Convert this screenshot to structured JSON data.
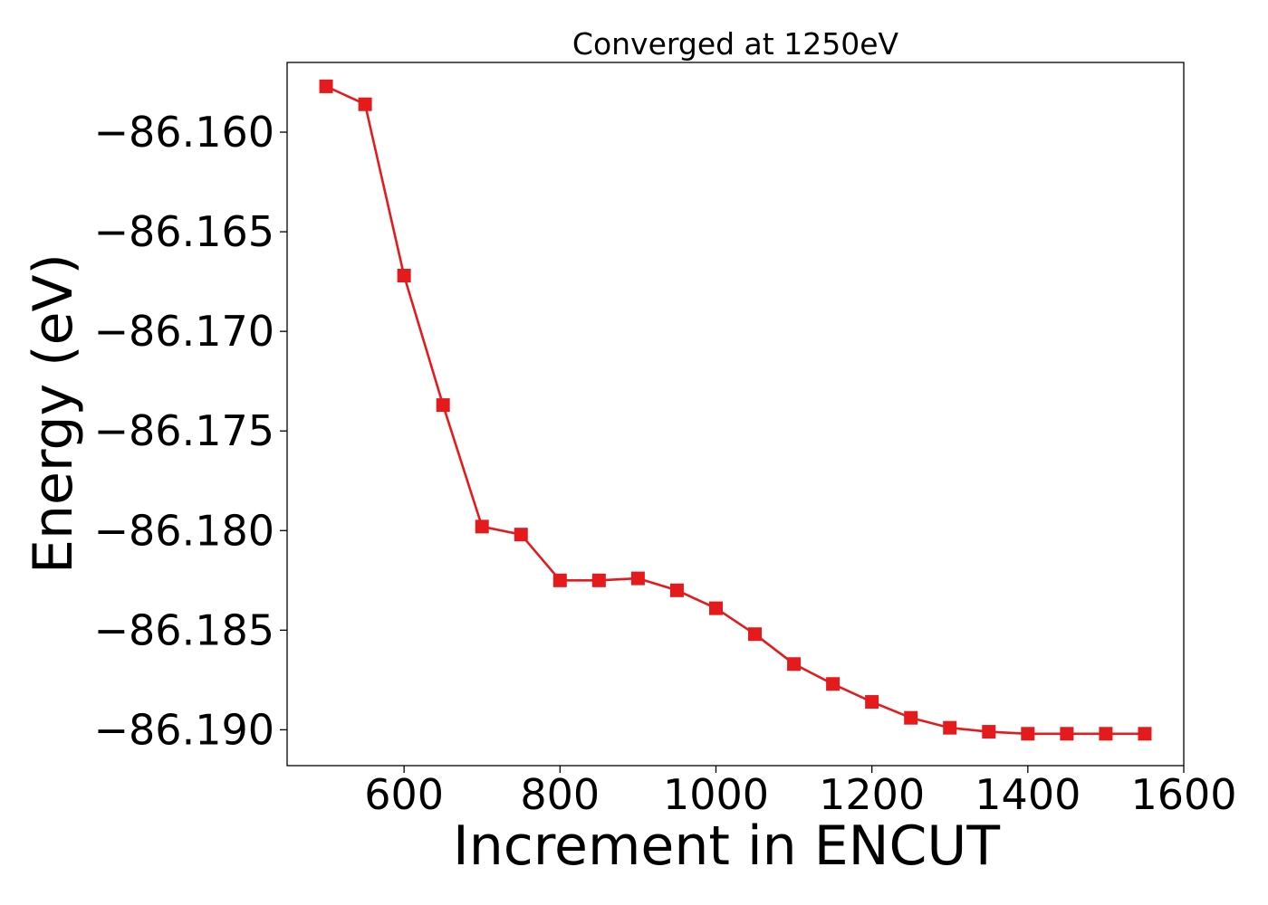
{
  "chart_data": {
    "type": "line",
    "title": "Converged at 1250eV",
    "xlabel": "Increment in ENCUT",
    "ylabel": "Energy (eV)",
    "xlim": [
      450,
      1600
    ],
    "ylim": [
      -86.1918,
      -86.1565
    ],
    "x_ticks": [
      600,
      800,
      1000,
      1200,
      1400,
      1600
    ],
    "x_tick_labels": [
      "600",
      "800",
      "1000",
      "1200",
      "1400",
      "1600"
    ],
    "y_ticks": [
      -86.16,
      -86.165,
      -86.17,
      -86.175,
      -86.18,
      -86.185,
      -86.19
    ],
    "y_tick_labels": [
      "−86.160",
      "−86.165",
      "−86.170",
      "−86.175",
      "−86.180",
      "−86.185",
      "−86.190"
    ],
    "grid": false,
    "series": [
      {
        "color": "#e41a1c",
        "marker": "square",
        "x": [
          500,
          550,
          600,
          650,
          700,
          750,
          800,
          850,
          900,
          950,
          1000,
          1050,
          1100,
          1150,
          1200,
          1250,
          1300,
          1350,
          1400,
          1450,
          1500,
          1550
        ],
        "y": [
          -86.1577,
          -86.1586,
          -86.1672,
          -86.1737,
          -86.1798,
          -86.1802,
          -86.1825,
          -86.1825,
          -86.1824,
          -86.183,
          -86.1839,
          -86.1852,
          -86.1867,
          -86.1877,
          -86.1886,
          -86.1894,
          -86.1899,
          -86.1901,
          -86.1902,
          -86.1902,
          -86.1902,
          -86.1902
        ]
      }
    ]
  }
}
